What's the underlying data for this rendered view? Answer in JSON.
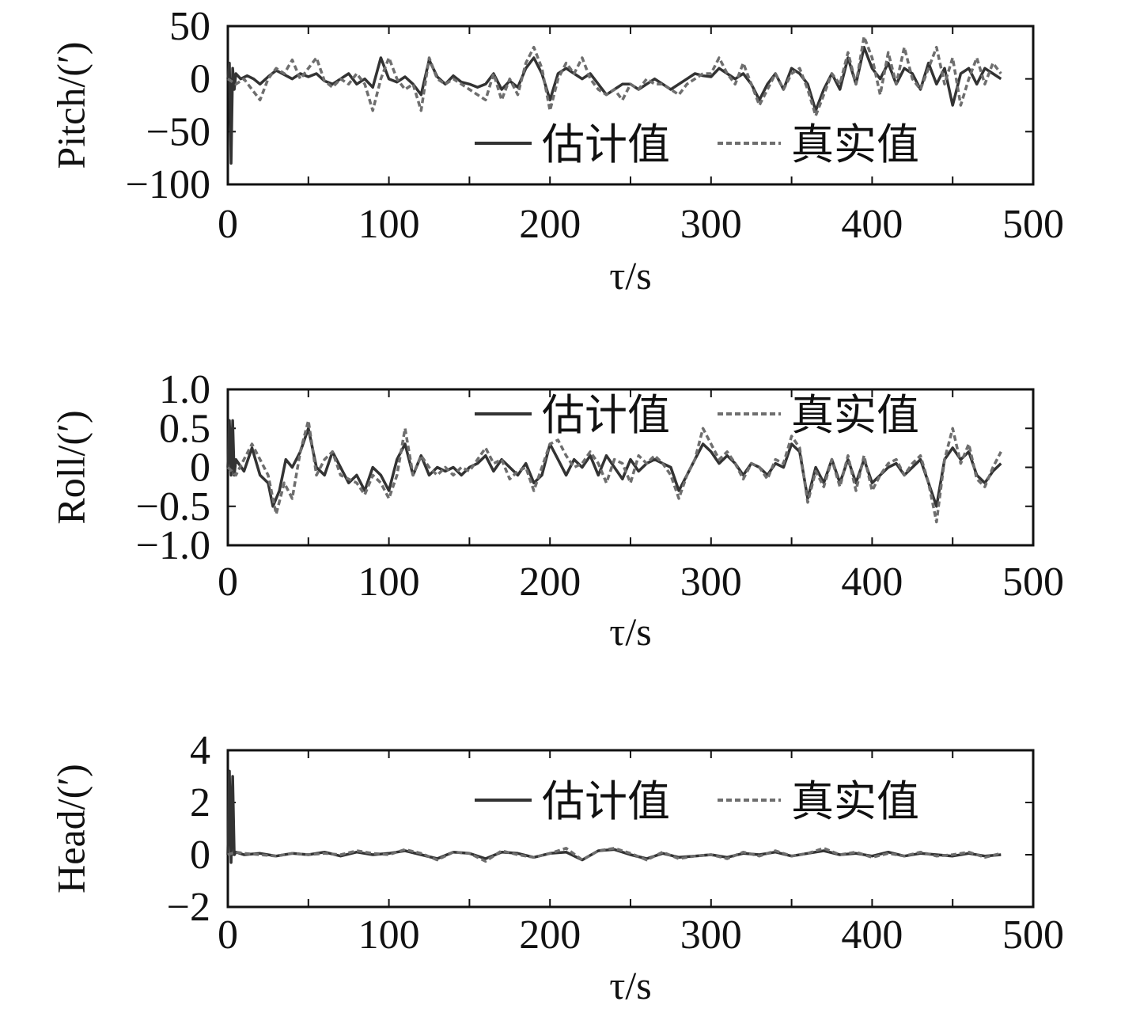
{
  "colors": {
    "estimate": "#333333",
    "truth": "#6e6e6e",
    "axis": "#111111",
    "background": "#ffffff"
  },
  "chart_data": [
    {
      "type": "line",
      "ylabel": "Pitch/(′)",
      "xlabel": "τ/s",
      "xlim": [
        0,
        500
      ],
      "ylim": [
        -100,
        50
      ],
      "xticks": [
        "0",
        "100",
        "200",
        "300",
        "400",
        "500"
      ],
      "yticks": [
        "50",
        "0",
        "−50",
        "−100"
      ],
      "legend": {
        "position": "lower-right",
        "entries": [
          "估计值",
          "真实值"
        ]
      },
      "grid": false,
      "series": [
        {
          "name": "估计值",
          "style": "solid",
          "x": [
            0,
            1,
            2,
            3,
            4,
            5,
            8,
            12,
            16,
            20,
            25,
            30,
            35,
            40,
            45,
            50,
            55,
            60,
            65,
            70,
            75,
            80,
            85,
            90,
            95,
            100,
            105,
            110,
            115,
            120,
            125,
            130,
            135,
            140,
            145,
            150,
            155,
            160,
            165,
            170,
            175,
            180,
            185,
            190,
            195,
            200,
            205,
            210,
            215,
            220,
            225,
            230,
            235,
            240,
            245,
            250,
            255,
            260,
            265,
            270,
            275,
            280,
            285,
            290,
            295,
            300,
            305,
            310,
            315,
            320,
            325,
            330,
            335,
            340,
            345,
            350,
            355,
            360,
            365,
            370,
            375,
            380,
            385,
            390,
            395,
            400,
            405,
            410,
            415,
            420,
            425,
            430,
            435,
            440,
            445,
            450,
            455,
            460,
            465,
            470,
            475,
            480
          ],
          "values": [
            0,
            15,
            -80,
            10,
            -10,
            5,
            0,
            3,
            0,
            -5,
            2,
            8,
            4,
            0,
            5,
            2,
            5,
            -2,
            -5,
            0,
            5,
            -5,
            0,
            -8,
            20,
            0,
            -3,
            2,
            -5,
            -15,
            18,
            2,
            -5,
            3,
            -3,
            -5,
            -8,
            -5,
            5,
            -10,
            -2,
            -8,
            10,
            20,
            5,
            -20,
            5,
            10,
            5,
            0,
            5,
            -5,
            -15,
            -10,
            -5,
            -5,
            -10,
            -5,
            0,
            -5,
            -10,
            -5,
            0,
            5,
            3,
            2,
            10,
            5,
            0,
            5,
            -5,
            -20,
            -5,
            5,
            -10,
            10,
            5,
            -5,
            -30,
            -10,
            5,
            -10,
            20,
            -5,
            30,
            10,
            0,
            15,
            -5,
            10,
            5,
            -10,
            15,
            -5,
            10,
            -25,
            5,
            10,
            -5,
            10,
            5,
            0
          ]
        },
        {
          "name": "真实值",
          "style": "dashed",
          "x": [
            0,
            5,
            10,
            15,
            20,
            25,
            30,
            35,
            40,
            45,
            50,
            55,
            60,
            65,
            70,
            75,
            80,
            85,
            90,
            95,
            100,
            105,
            110,
            115,
            120,
            125,
            130,
            135,
            140,
            145,
            150,
            155,
            160,
            165,
            170,
            175,
            180,
            185,
            190,
            195,
            200,
            205,
            210,
            215,
            220,
            225,
            230,
            235,
            240,
            245,
            250,
            255,
            260,
            265,
            270,
            275,
            280,
            285,
            290,
            295,
            300,
            305,
            310,
            315,
            320,
            325,
            330,
            335,
            340,
            345,
            350,
            355,
            360,
            365,
            370,
            375,
            380,
            385,
            390,
            395,
            400,
            405,
            410,
            415,
            420,
            425,
            430,
            435,
            440,
            445,
            450,
            455,
            460,
            465,
            470,
            475,
            480
          ],
          "values": [
            0,
            -5,
            0,
            -10,
            -20,
            0,
            10,
            5,
            18,
            0,
            10,
            20,
            -2,
            -8,
            0,
            -5,
            5,
            -5,
            -30,
            0,
            20,
            0,
            -10,
            -5,
            -30,
            20,
            0,
            -5,
            0,
            -5,
            -10,
            -15,
            -20,
            5,
            -20,
            0,
            -15,
            15,
            30,
            10,
            -30,
            0,
            15,
            5,
            20,
            0,
            -10,
            -15,
            -10,
            -20,
            -5,
            -10,
            0,
            -5,
            -5,
            -10,
            -15,
            -5,
            0,
            5,
            5,
            20,
            5,
            -5,
            15,
            -5,
            -25,
            -10,
            5,
            -10,
            5,
            10,
            -10,
            -35,
            -15,
            5,
            -5,
            25,
            -5,
            40,
            20,
            -15,
            25,
            -5,
            30,
            0,
            -10,
            10,
            30,
            -5,
            20,
            -25,
            0,
            20,
            -5,
            15,
            5
          ]
        }
      ]
    },
    {
      "type": "line",
      "ylabel": "Roll/(′)",
      "xlabel": "τ/s",
      "xlim": [
        0,
        500
      ],
      "ylim": [
        -1.0,
        1.0
      ],
      "xticks": [
        "0",
        "100",
        "200",
        "300",
        "400",
        "500"
      ],
      "yticks": [
        "1.0",
        "0.5",
        "0",
        "−0.5",
        "−1.0"
      ],
      "legend": {
        "position": "top-right",
        "entries": [
          "估计值",
          "真实值"
        ]
      },
      "grid": false,
      "series": [
        {
          "name": "估计值",
          "style": "solid",
          "x": [
            0,
            1,
            2,
            3,
            4,
            5,
            10,
            15,
            20,
            25,
            28,
            32,
            36,
            40,
            45,
            50,
            55,
            60,
            65,
            70,
            75,
            80,
            85,
            90,
            95,
            100,
            105,
            110,
            115,
            120,
            125,
            130,
            135,
            140,
            145,
            150,
            155,
            160,
            165,
            170,
            175,
            180,
            185,
            190,
            195,
            200,
            205,
            210,
            215,
            220,
            225,
            230,
            235,
            240,
            245,
            250,
            255,
            260,
            265,
            270,
            275,
            280,
            285,
            290,
            295,
            300,
            305,
            310,
            315,
            320,
            325,
            330,
            335,
            340,
            345,
            350,
            355,
            360,
            365,
            370,
            375,
            380,
            385,
            390,
            395,
            400,
            405,
            410,
            415,
            420,
            425,
            430,
            435,
            440,
            445,
            450,
            455,
            460,
            465,
            470,
            475,
            480
          ],
          "values": [
            0,
            0.6,
            -0.1,
            0.6,
            -0.1,
            0.1,
            -0.05,
            0.25,
            -0.1,
            -0.2,
            -0.5,
            -0.3,
            0.1,
            0,
            0.2,
            0.5,
            0,
            -0.1,
            0.2,
            0,
            -0.2,
            -0.1,
            -0.3,
            0,
            -0.1,
            -0.3,
            0.1,
            0.3,
            -0.1,
            0.15,
            -0.1,
            0,
            -0.05,
            0,
            -0.1,
            0,
            0.05,
            0.15,
            -0.05,
            0.1,
            0,
            -0.1,
            0.05,
            -0.2,
            -0.1,
            0.3,
            0.1,
            -0.1,
            0.1,
            0,
            0.15,
            -0.1,
            0.15,
            0,
            -0.15,
            0.1,
            -0.05,
            0.05,
            0.1,
            0.05,
            0,
            -0.3,
            -0.1,
            0.1,
            0.3,
            0.2,
            0.05,
            0.15,
            0.05,
            -0.1,
            0.05,
            0,
            -0.1,
            0.05,
            0,
            0.3,
            0.2,
            -0.4,
            0,
            -0.2,
            0.1,
            -0.2,
            0.1,
            -0.2,
            0.1,
            -0.2,
            -0.1,
            0,
            0.05,
            -0.1,
            0,
            0.1,
            -0.2,
            -0.5,
            0.1,
            0.25,
            0.1,
            0.2,
            -0.1,
            -0.2,
            -0.05,
            0.05
          ]
        },
        {
          "name": "真实值",
          "style": "dashed",
          "x": [
            0,
            5,
            10,
            15,
            20,
            25,
            30,
            35,
            40,
            45,
            50,
            55,
            60,
            65,
            70,
            75,
            80,
            85,
            90,
            95,
            100,
            105,
            110,
            115,
            120,
            125,
            130,
            135,
            140,
            145,
            150,
            155,
            160,
            165,
            170,
            175,
            180,
            185,
            190,
            195,
            200,
            205,
            210,
            215,
            220,
            225,
            230,
            235,
            240,
            245,
            250,
            255,
            260,
            265,
            270,
            275,
            280,
            285,
            290,
            295,
            300,
            305,
            310,
            315,
            320,
            325,
            330,
            335,
            340,
            345,
            350,
            355,
            360,
            365,
            370,
            375,
            380,
            385,
            390,
            395,
            400,
            405,
            410,
            415,
            420,
            425,
            430,
            435,
            440,
            445,
            450,
            455,
            460,
            465,
            470,
            475,
            480
          ],
          "values": [
            0,
            -0.1,
            0.1,
            0.3,
            0.1,
            -0.1,
            -0.6,
            -0.2,
            -0.4,
            0.2,
            0.6,
            -0.1,
            0.1,
            0.2,
            -0.1,
            -0.15,
            -0.2,
            -0.35,
            -0.1,
            -0.2,
            -0.4,
            -0.1,
            0.5,
            -0.1,
            0.15,
            0,
            -0.1,
            0,
            -0.1,
            0,
            -0.05,
            0.1,
            0.25,
            0.05,
            0.1,
            -0.15,
            -0.05,
            0,
            -0.3,
            0,
            0.3,
            0.35,
            0.15,
            0,
            0.05,
            0.2,
            0.05,
            -0.2,
            0.1,
            0.05,
            -0.2,
            0.15,
            0.05,
            0.15,
            0.05,
            -0.1,
            -0.4,
            -0.1,
            0.1,
            0.5,
            0.3,
            0.1,
            0.2,
            0.05,
            -0.15,
            0.05,
            0,
            -0.15,
            0.1,
            0.05,
            0.4,
            0.25,
            -0.45,
            -0.05,
            -0.25,
            0.1,
            -0.25,
            0.15,
            -0.3,
            0.15,
            -0.3,
            -0.1,
            0.05,
            0.1,
            -0.1,
            0.05,
            0.15,
            -0.2,
            -0.7,
            0.1,
            0.5,
            0.05,
            0.3,
            -0.15,
            -0.25,
            0,
            0.2
          ]
        }
      ]
    },
    {
      "type": "line",
      "ylabel": "Head/(′)",
      "xlabel": "τ/s",
      "xlim": [
        0,
        500
      ],
      "ylim": [
        -2,
        4
      ],
      "xticks": [
        "0",
        "100",
        "200",
        "300",
        "400",
        "500"
      ],
      "yticks": [
        "4",
        "2",
        "0",
        "−2"
      ],
      "legend": {
        "position": "top-right",
        "entries": [
          "估计值",
          "真实值"
        ]
      },
      "grid": false,
      "series": [
        {
          "name": "估计值",
          "style": "solid",
          "x": [
            0,
            1,
            2,
            3,
            4,
            5,
            10,
            20,
            30,
            40,
            50,
            60,
            70,
            80,
            90,
            100,
            110,
            120,
            130,
            140,
            150,
            160,
            170,
            180,
            190,
            200,
            210,
            220,
            230,
            240,
            250,
            260,
            270,
            280,
            290,
            300,
            310,
            320,
            330,
            340,
            350,
            360,
            370,
            380,
            390,
            400,
            410,
            420,
            430,
            440,
            450,
            460,
            470,
            480
          ],
          "values": [
            0,
            3.2,
            -0.3,
            3.0,
            0,
            0.1,
            0,
            0.05,
            -0.05,
            0.05,
            0,
            0.1,
            -0.05,
            0.1,
            0,
            0.05,
            0.15,
            0,
            -0.15,
            0.1,
            0.05,
            -0.15,
            0.1,
            0.05,
            -0.1,
            0.05,
            0.1,
            -0.2,
            0.15,
            0.2,
            0,
            -0.15,
            0.05,
            -0.1,
            -0.05,
            0,
            -0.1,
            0.05,
            0,
            0.1,
            -0.05,
            0.05,
            0.15,
            0,
            0.05,
            -0.05,
            0.1,
            -0.05,
            0.05,
            0,
            -0.05,
            0.05,
            -0.05,
            0
          ]
        },
        {
          "name": "真实值",
          "style": "dashed",
          "x": [
            0,
            5,
            10,
            20,
            30,
            40,
            50,
            60,
            70,
            80,
            90,
            100,
            110,
            120,
            130,
            140,
            150,
            160,
            170,
            180,
            190,
            200,
            210,
            220,
            230,
            240,
            250,
            260,
            270,
            280,
            290,
            300,
            310,
            320,
            330,
            340,
            350,
            360,
            370,
            380,
            390,
            400,
            410,
            420,
            430,
            440,
            450,
            460,
            470,
            480
          ],
          "values": [
            0,
            0.1,
            0.05,
            0,
            -0.05,
            0.05,
            0,
            0.05,
            0,
            0.15,
            0.05,
            0,
            0.2,
            0.05,
            -0.2,
            0.1,
            0.05,
            -0.25,
            0.15,
            0,
            -0.1,
            0.05,
            0.25,
            -0.2,
            0.15,
            0.25,
            0.05,
            -0.2,
            0.1,
            -0.15,
            -0.05,
            0,
            -0.15,
            0.1,
            -0.05,
            0.15,
            -0.05,
            0.05,
            0.25,
            0,
            0.1,
            -0.1,
            0.05,
            -0.05,
            0.1,
            -0.05,
            0,
            0.1,
            -0.1,
            0.05
          ]
        }
      ]
    }
  ]
}
